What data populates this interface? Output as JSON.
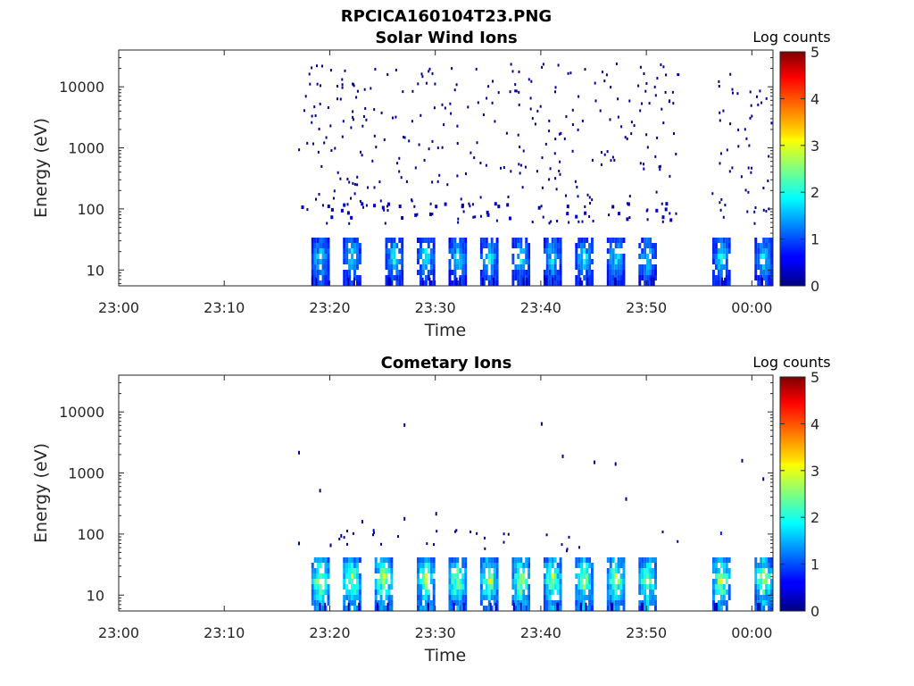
{
  "figure_title": "RPCICA160104T23.PNG",
  "colorbar": {
    "label": "Log counts",
    "ticks": [
      "0",
      "1",
      "2",
      "3",
      "4",
      "5"
    ],
    "range": [
      0,
      5
    ],
    "colormap": "jet"
  },
  "chart_data": [
    {
      "type": "heatmap",
      "title": "Solar Wind Ions",
      "xlabel": "Time",
      "ylabel": "Energy (eV)",
      "x_ticks": [
        "23:00",
        "23:10",
        "23:20",
        "23:30",
        "23:40",
        "23:50",
        "00:00"
      ],
      "x_range": [
        "23:00",
        "00:02"
      ],
      "y_scale": "log",
      "y_ticks": [
        "10",
        "100",
        "1000",
        "10000"
      ],
      "y_range": [
        5.5,
        40000
      ],
      "z_label": "Log counts",
      "z_range": [
        0,
        5
      ],
      "coverage": [
        [
          "23:17",
          "23:53"
        ],
        [
          "23:56",
          "00:02"
        ]
      ],
      "low_energy_bands": {
        "energy_range_eV": [
          8,
          30
        ],
        "peak_log_counts": 2.0,
        "times": [
          "23:19",
          "23:22",
          "23:26",
          "23:29",
          "23:32",
          "23:35",
          "23:38",
          "23:41",
          "23:44",
          "23:47",
          "23:50",
          "23:57",
          "00:01"
        ]
      },
      "scattered_counts": {
        "energy_range_eV": [
          60,
          25000
        ],
        "log_counts": 0.1,
        "approx_points": 380
      }
    },
    {
      "type": "heatmap",
      "title": "Cometary Ions",
      "xlabel": "Time",
      "ylabel": "Energy (eV)",
      "x_ticks": [
        "23:00",
        "23:10",
        "23:20",
        "23:30",
        "23:40",
        "23:50",
        "00:00"
      ],
      "x_range": [
        "23:00",
        "00:02"
      ],
      "y_scale": "log",
      "y_ticks": [
        "10",
        "100",
        "1000",
        "10000"
      ],
      "y_range": [
        5.5,
        40000
      ],
      "z_label": "Log counts",
      "z_range": [
        0,
        5
      ],
      "coverage": [
        [
          "23:17",
          "23:53"
        ],
        [
          "23:56",
          "00:02"
        ]
      ],
      "low_energy_bands": {
        "energy_range_eV": [
          8,
          38
        ],
        "peak_log_counts": 3.0,
        "times": [
          "23:19",
          "23:22",
          "23:25",
          "23:29",
          "23:32",
          "23:35",
          "23:38",
          "23:41",
          "23:44",
          "23:47",
          "23:50",
          "23:57",
          "00:01"
        ]
      },
      "sparse_points": [
        {
          "time": "23:17",
          "energy": 2300,
          "log_counts": 0.1
        },
        {
          "time": "23:17",
          "energy": 75,
          "log_counts": 0.1
        },
        {
          "time": "23:19",
          "energy": 550,
          "log_counts": 0.1
        },
        {
          "time": "23:20",
          "energy": 70,
          "log_counts": 0.1
        },
        {
          "time": "23:21",
          "energy": 100,
          "log_counts": 0.1
        },
        {
          "time": "23:23",
          "energy": 170,
          "log_counts": 0.1
        },
        {
          "time": "23:27",
          "energy": 6500,
          "log_counts": 0.1
        },
        {
          "time": "23:27",
          "energy": 190,
          "log_counts": 0.1
        },
        {
          "time": "23:30",
          "energy": 230,
          "log_counts": 0.1
        },
        {
          "time": "23:40",
          "energy": 6800,
          "log_counts": 0.1
        },
        {
          "time": "23:42",
          "energy": 2000,
          "log_counts": 0.1
        },
        {
          "time": "23:45",
          "energy": 1600,
          "log_counts": 0.1
        },
        {
          "time": "23:47",
          "energy": 1500,
          "log_counts": 0.1
        },
        {
          "time": "23:48",
          "energy": 400,
          "log_counts": 0.1
        },
        {
          "time": "23:59",
          "energy": 1700,
          "log_counts": 0.1
        },
        {
          "time": "00:01",
          "energy": 850,
          "log_counts": 0.1
        },
        {
          "time": "23:57",
          "energy": 110,
          "log_counts": 0.8
        }
      ]
    }
  ]
}
